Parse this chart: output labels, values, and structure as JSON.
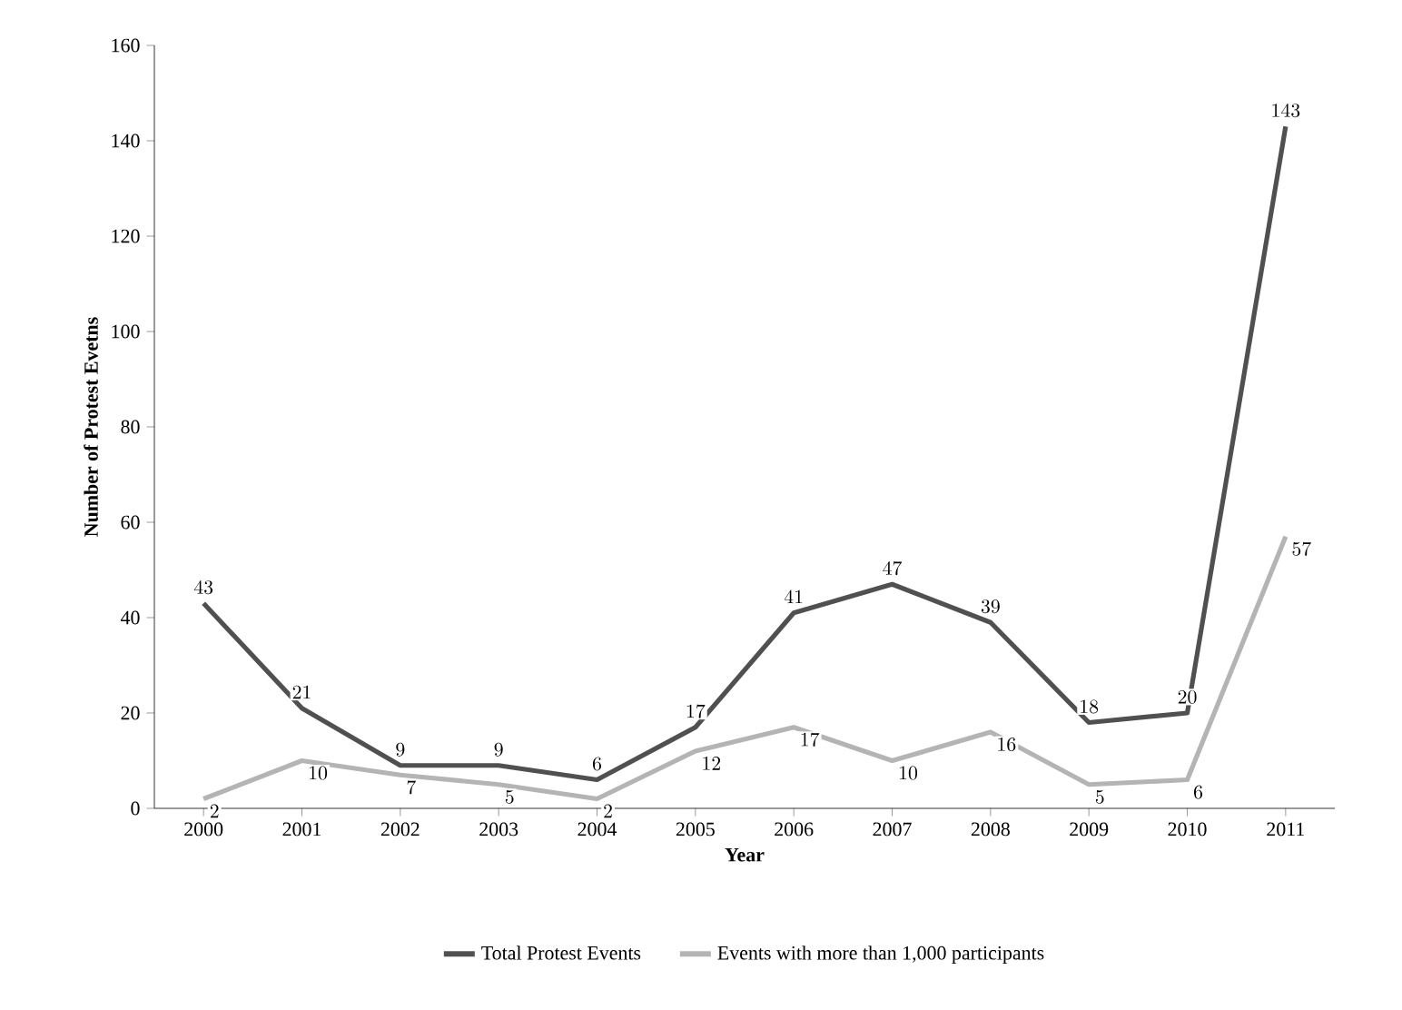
{
  "chart_data": {
    "type": "line",
    "xlabel": "Year",
    "ylabel": "Number of Protest Evetns",
    "categories": [
      "2000",
      "2001",
      "2002",
      "2003",
      "2004",
      "2005",
      "2006",
      "2007",
      "2008",
      "2009",
      "2010",
      "2011"
    ],
    "series": [
      {
        "name": "Total Protest Events",
        "color": "#505050",
        "values": [
          43,
          21,
          9,
          9,
          6,
          17,
          41,
          47,
          39,
          18,
          20,
          143
        ]
      },
      {
        "name": "Events with more than 1,000 participants",
        "color": "#b4b4b4",
        "values": [
          2,
          10,
          7,
          5,
          2,
          12,
          17,
          10,
          16,
          5,
          6,
          57
        ]
      }
    ],
    "ylim": [
      0,
      160
    ],
    "yticks": [
      0,
      20,
      40,
      60,
      80,
      100,
      120,
      140,
      160
    ],
    "data_labels": true,
    "legend": "bottom",
    "grid": false,
    "marker": "none",
    "line_style": "solid"
  }
}
